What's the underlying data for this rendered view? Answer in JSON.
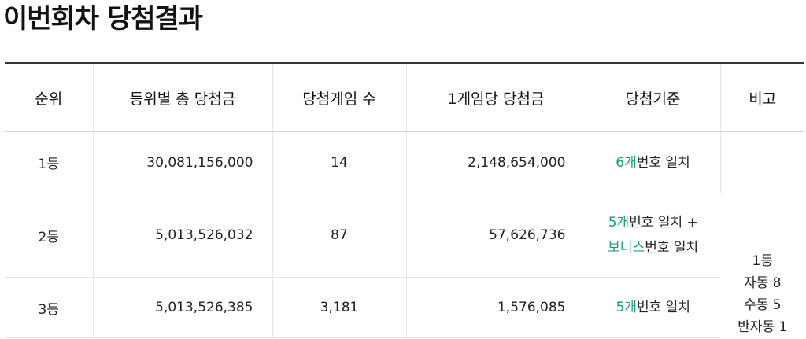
{
  "title": "이번회차 당첨결과",
  "headers": {
    "rank": "순위",
    "total_prize": "등위별 총 당첨금",
    "winners": "당첨게임 수",
    "per_game": "1게임당 당첨금",
    "criteria": "당첨기준",
    "note": "비고"
  },
  "rows": [
    {
      "rank": "1등",
      "total_prize": "30,081,156,000",
      "winners": "14",
      "per_game": "2,148,654,000",
      "criteria": [
        {
          "highlight": "6개",
          "text": "번호 일치"
        }
      ]
    },
    {
      "rank": "2등",
      "total_prize": "5,013,526,032",
      "winners": "87",
      "per_game": "57,626,736",
      "criteria": [
        {
          "highlight": "5개",
          "text": "번호 일치 +"
        },
        {
          "highlight": "보너스",
          "text": "번호 일치"
        }
      ]
    },
    {
      "rank": "3등",
      "total_prize": "5,013,526,385",
      "winners": "3,181",
      "per_game": "1,576,085",
      "criteria": [
        {
          "highlight": "5개",
          "text": "번호 일치"
        }
      ]
    }
  ],
  "note": {
    "line1": "1등",
    "line2": "자동 8",
    "line3": "수동 5",
    "line4": "반자동 1"
  },
  "colors": {
    "accent_green": "#1c9b7d",
    "header_border": "#333333"
  }
}
